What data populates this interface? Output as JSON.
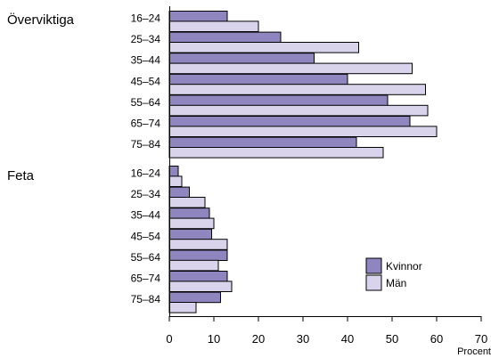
{
  "chart_data": {
    "type": "bar",
    "orientation": "horizontal",
    "xlabel": "Procent",
    "xlim": [
      0,
      70
    ],
    "xticks": [
      0,
      10,
      20,
      30,
      40,
      50,
      60,
      70
    ],
    "categories": [
      "16–24",
      "25–34",
      "35–44",
      "45–54",
      "55–64",
      "65–74",
      "75–84"
    ],
    "legend_position": "bottom-right",
    "series": [
      {
        "name": "Kvinnor",
        "color": "#8f85bf"
      },
      {
        "name": "Män",
        "color": "#d9d4ec"
      }
    ],
    "groups": [
      {
        "label": "Överviktiga",
        "kvinnor": [
          13,
          25,
          32.5,
          40,
          49,
          54,
          42
        ],
        "man": [
          20,
          42.5,
          54.5,
          57.5,
          58,
          60,
          48
        ]
      },
      {
        "label": "Feta",
        "kvinnor": [
          2,
          4.5,
          9,
          9.5,
          13,
          13,
          11.5
        ],
        "man": [
          2.8,
          8,
          10,
          13,
          11,
          14,
          6
        ]
      }
    ]
  }
}
